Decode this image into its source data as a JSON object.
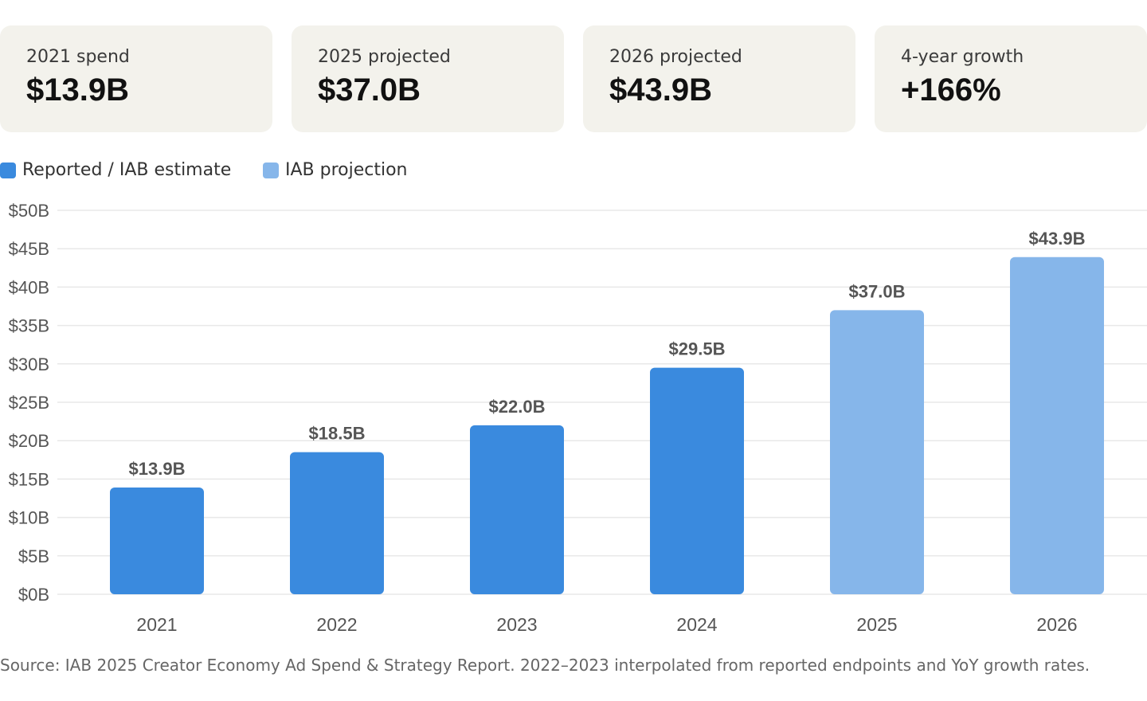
{
  "cards": [
    {
      "label": "2021 spend",
      "value": "$13.9B"
    },
    {
      "label": "2025 projected",
      "value": "$37.0B"
    },
    {
      "label": "2026 projected",
      "value": "$43.9B"
    },
    {
      "label": "4-year growth",
      "value": "+166%"
    }
  ],
  "legend": [
    {
      "label": "Reported / IAB estimate",
      "color": "#3a8ade"
    },
    {
      "label": "IAB projection",
      "color": "#86b6ea"
    }
  ],
  "chart_data": {
    "type": "bar",
    "title": "",
    "xlabel": "",
    "ylabel": "",
    "categories": [
      "2021",
      "2022",
      "2023",
      "2024",
      "2025",
      "2026"
    ],
    "values": [
      13.9,
      18.5,
      22.0,
      29.5,
      37.0,
      43.9
    ],
    "data_labels": [
      "$13.9B",
      "$18.5B",
      "$22.0B",
      "$29.5B",
      "$37.0B",
      "$43.9B"
    ],
    "series_kind": [
      "reported",
      "reported",
      "reported",
      "reported",
      "projection",
      "projection"
    ],
    "ylim": [
      0,
      50
    ],
    "yticks": [
      0,
      5,
      10,
      15,
      20,
      25,
      30,
      35,
      40,
      45,
      50
    ],
    "ytick_labels": [
      "$0B",
      "$5B",
      "$10B",
      "$15B",
      "$20B",
      "$25B",
      "$30B",
      "$35B",
      "$40B",
      "$45B",
      "$50B"
    ],
    "grid": true,
    "colors": {
      "reported": "#3a8ade",
      "projection": "#86b6ea",
      "grid": "#e8e8e8",
      "text": "#555555"
    }
  },
  "source": "Source: IAB 2025 Creator Economy Ad Spend & Strategy Report. 2022–2023 interpolated from reported endpoints and YoY growth rates."
}
